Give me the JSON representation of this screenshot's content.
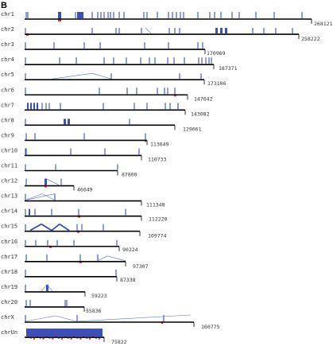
{
  "panel_label": "B",
  "chromosomes": [
    {
      "name": "chr1",
      "length": "268121"
    },
    {
      "name": "chr2",
      "length": "258222"
    },
    {
      "name": "chr3",
      "length": "170969"
    },
    {
      "name": "chr4",
      "length": "187371"
    },
    {
      "name": "chr5",
      "length": "173106"
    },
    {
      "name": "chr6",
      "length": "147642"
    },
    {
      "name": "chr7",
      "length": "143082"
    },
    {
      "name": "chr8",
      "length": "129061"
    },
    {
      "name": "chr9",
      "length": "113649"
    },
    {
      "name": "chr10",
      "length": "110733"
    },
    {
      "name": "chr11",
      "length": "87800"
    },
    {
      "name": "chr12",
      "length": "46649"
    },
    {
      "name": "chr13",
      "length": "111348"
    },
    {
      "name": "chr14",
      "length": "112220"
    },
    {
      "name": "chr15",
      "length": "109774"
    },
    {
      "name": "chr16",
      "length": "90224"
    },
    {
      "name": "chr17",
      "length": "97307"
    },
    {
      "name": "chr18",
      "length": "87338"
    },
    {
      "name": "chr19",
      "length": "59223"
    },
    {
      "name": "chr20",
      "length": "55836"
    },
    {
      "name": "chrX",
      "length": "160775"
    },
    {
      "name": "chrUn",
      "length": "75822"
    }
  ],
  "colors": {
    "feature": "#3a4fb8",
    "marker": "#e0392d",
    "axis": "#000000"
  }
}
